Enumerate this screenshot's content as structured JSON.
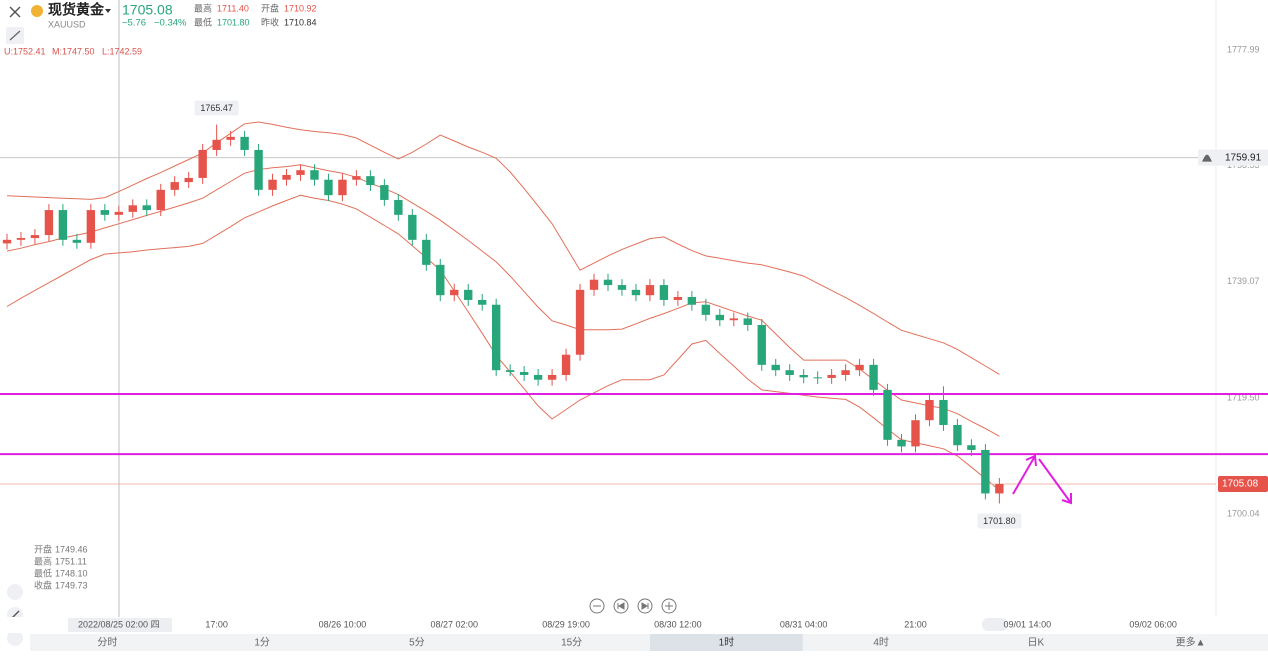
{
  "header": {
    "name": "现货黄金",
    "symbol": "XAUUSD",
    "price": "1705.08",
    "change": "−5.76",
    "change_pct": "−0.34%",
    "stats": [
      {
        "label": "最高",
        "value": "1711.40"
      },
      {
        "label": "开盘",
        "value": "1710.92"
      },
      {
        "label": "最低",
        "value": "1701.80"
      },
      {
        "label": "昨收",
        "value": "1710.84"
      }
    ]
  },
  "indicator": [
    "U:1752.41",
    "M:1747.50",
    "L:1742.59"
  ],
  "info_box": [
    {
      "label": "开盘",
      "value": "1749.46"
    },
    {
      "label": "最高",
      "value": "1751.11"
    },
    {
      "label": "最低",
      "value": "1748.10"
    },
    {
      "label": "收盘",
      "value": "1749.73"
    }
  ],
  "tabs": [
    "分时",
    "1分",
    "5分",
    "15分",
    "1时",
    "4时",
    "日K",
    "更多▲"
  ],
  "active_tab": 4,
  "chart_data": {
    "type": "candlestick",
    "categories": [
      null,
      null,
      null,
      null,
      null,
      null,
      null,
      null,
      "2022/08/25 02:00 四",
      null,
      null,
      null,
      null,
      null,
      null,
      "17:00",
      null,
      null,
      null,
      null,
      null,
      null,
      null,
      null,
      "08/26 10:00",
      null,
      null,
      null,
      null,
      null,
      null,
      null,
      "08/27 02:00",
      null,
      null,
      null,
      null,
      null,
      null,
      null,
      "08/29 19:00",
      null,
      null,
      null,
      null,
      null,
      null,
      null,
      "08/30 12:00",
      null,
      null,
      null,
      null,
      null,
      null,
      null,
      null,
      "08/31 04:00",
      null,
      null,
      null,
      null,
      null,
      null,
      null,
      "21:00",
      null,
      null,
      null,
      null,
      null,
      null,
      null,
      "09/01 14:00",
      null,
      null,
      null,
      null,
      null,
      null,
      null,
      null,
      "09/02 06:00",
      null,
      null,
      null,
      null
    ],
    "open": [
      1745.5,
      1746.1,
      1746.4,
      1746.9,
      1751.1,
      1746.1,
      1745.6,
      1751.1,
      1750.3,
      1750.8,
      1751.9,
      1751.1,
      1754.5,
      1755.8,
      1756.5,
      1761.2,
      1762.9,
      1763.4,
      1761.2,
      1754.5,
      1756.2,
      1757.0,
      1757.8,
      1756.2,
      1753.6,
      1756.2,
      1756.8,
      1755.3,
      1752.8,
      1750.3,
      1746.1,
      1741.9,
      1736.8,
      1737.7,
      1736.0,
      1735.2,
      1724.2,
      1723.9,
      1723.4,
      1722.6,
      1723.4,
      1726.8,
      1737.7,
      1739.4,
      1738.5,
      1737.7,
      1736.8,
      1738.5,
      1736.0,
      1736.5,
      1735.2,
      1733.5,
      1732.6,
      1732.9,
      1731.8,
      1725.1,
      1724.2,
      1723.4,
      1723.0,
      1722.9,
      1723.4,
      1724.2,
      1725.1,
      1720.9,
      1712.5,
      1711.4,
      1715.8,
      1719.2,
      1715.0,
      1711.6,
      1710.8,
      1703.5,
      null,
      null,
      null,
      null,
      null,
      null,
      null,
      null,
      null,
      null,
      null,
      null,
      null,
      null,
      null
    ],
    "high": [
      1747.1,
      1747.4,
      1747.9,
      1752.1,
      1752.1,
      1747.1,
      1752.1,
      1752.1,
      1751.8,
      1752.9,
      1752.9,
      1755.5,
      1756.8,
      1757.5,
      1762.2,
      1765.47,
      1764.4,
      1764.4,
      1762.2,
      1757.2,
      1758.0,
      1758.8,
      1758.8,
      1757.2,
      1757.2,
      1757.8,
      1757.8,
      1756.3,
      1753.8,
      1751.3,
      1747.1,
      1742.9,
      1738.7,
      1738.7,
      1737.0,
      1736.2,
      1725.2,
      1724.9,
      1724.4,
      1724.4,
      1727.8,
      1738.7,
      1740.4,
      1740.4,
      1739.5,
      1738.7,
      1739.5,
      1739.5,
      1737.5,
      1737.5,
      1736.2,
      1734.5,
      1733.9,
      1733.9,
      1732.8,
      1726.1,
      1725.2,
      1724.4,
      1724.0,
      1724.4,
      1725.2,
      1726.1,
      1726.1,
      1721.9,
      1713.5,
      1716.8,
      1720.2,
      1721.5,
      1716.0,
      1712.6,
      1711.8,
      1706.1,
      null,
      null,
      null,
      null,
      null,
      null,
      null,
      null,
      null,
      null,
      null,
      null,
      null,
      null,
      null
    ],
    "low": [
      1744.5,
      1745.1,
      1745.4,
      1745.9,
      1745.1,
      1744.6,
      1744.6,
      1749.3,
      1749.3,
      1749.8,
      1750.1,
      1750.1,
      1753.5,
      1754.8,
      1755.5,
      1760.2,
      1761.9,
      1760.2,
      1753.5,
      1753.5,
      1755.2,
      1756.0,
      1755.2,
      1752.6,
      1752.6,
      1755.2,
      1754.3,
      1751.8,
      1749.3,
      1745.1,
      1740.9,
      1735.8,
      1735.8,
      1735.0,
      1734.2,
      1723.2,
      1723.2,
      1722.4,
      1721.6,
      1721.6,
      1722.4,
      1725.8,
      1736.7,
      1737.5,
      1736.7,
      1735.8,
      1735.8,
      1735.0,
      1735.0,
      1734.2,
      1732.5,
      1731.6,
      1731.6,
      1730.8,
      1724.1,
      1723.2,
      1722.4,
      1722.0,
      1721.9,
      1721.9,
      1722.4,
      1723.2,
      1719.9,
      1711.5,
      1710.4,
      1710.4,
      1714.8,
      1714.0,
      1710.6,
      1709.8,
      1702.5,
      1701.8,
      null,
      null,
      null,
      null,
      null,
      null,
      null,
      null,
      null,
      null,
      null,
      null,
      null,
      null,
      null
    ],
    "close": [
      1746.1,
      1746.4,
      1746.9,
      1751.1,
      1746.1,
      1745.6,
      1751.1,
      1750.3,
      1750.8,
      1751.9,
      1751.1,
      1754.5,
      1755.8,
      1756.5,
      1761.2,
      1762.9,
      1763.4,
      1761.2,
      1754.5,
      1756.2,
      1757.0,
      1757.8,
      1756.2,
      1753.6,
      1756.2,
      1756.8,
      1755.3,
      1752.8,
      1750.3,
      1746.1,
      1741.9,
      1736.8,
      1737.7,
      1736.0,
      1735.2,
      1724.2,
      1723.9,
      1723.4,
      1722.6,
      1723.4,
      1726.8,
      1737.7,
      1739.4,
      1738.5,
      1737.7,
      1736.8,
      1738.5,
      1736.0,
      1736.5,
      1735.2,
      1733.5,
      1732.6,
      1732.9,
      1731.8,
      1725.1,
      1724.2,
      1723.4,
      1723.0,
      1722.9,
      1723.4,
      1724.2,
      1725.1,
      1720.9,
      1712.5,
      1711.4,
      1715.8,
      1719.2,
      1715.0,
      1711.6,
      1710.8,
      1703.5,
      1705.08,
      null,
      null,
      null,
      null,
      null,
      null,
      null,
      null,
      null,
      null,
      null,
      null,
      null,
      null,
      null
    ],
    "up_color": "#e5534b",
    "down_color": "#27a67a",
    "bands": {
      "color": "#e2705a",
      "upper": [
        1753.5,
        1753.4,
        1753.3,
        1753.2,
        1753.1,
        1753.0,
        1752.9,
        1753.2,
        1754.2,
        1755.3,
        1756.4,
        1757.4,
        1758.5,
        1759.6,
        1760.7,
        1762.4,
        1764.0,
        1765.6,
        1765.9,
        1765.5,
        1765.0,
        1764.6,
        1764.3,
        1764.1,
        1763.8,
        1763.2,
        1762.0,
        1760.8,
        1759.7,
        1760.8,
        1762.2,
        1763.7,
        1762.7,
        1761.7,
        1760.8,
        1759.8,
        1757.5,
        1754.7,
        1751.8,
        1748.8,
        1744.9,
        1741.0,
        1742.2,
        1743.4,
        1744.5,
        1745.4,
        1746.3,
        1746.6,
        1745.4,
        1744.3,
        1743.4,
        1743.0,
        1742.6,
        1742.2,
        1741.9,
        1741.3,
        1740.7,
        1740.0,
        1738.8,
        1737.6,
        1736.4,
        1735.1,
        1733.7,
        1732.3,
        1730.9,
        1730.2,
        1729.5,
        1728.8,
        1727.7,
        1726.3,
        1724.9,
        1723.5,
        null,
        null,
        null,
        null,
        null,
        null,
        null,
        null,
        null,
        null,
        null,
        null,
        null,
        null,
        null
      ],
      "middle": [
        1744.2,
        1744.7,
        1745.3,
        1745.8,
        1746.4,
        1746.9,
        1747.4,
        1748.1,
        1748.8,
        1749.5,
        1750.2,
        1750.9,
        1751.6,
        1752.3,
        1753.1,
        1754.5,
        1755.9,
        1757.3,
        1757.9,
        1758.2,
        1758.4,
        1758.7,
        1758.2,
        1757.7,
        1757.3,
        1756.6,
        1755.6,
        1754.7,
        1753.7,
        1752.3,
        1750.9,
        1749.4,
        1747.7,
        1746.0,
        1744.2,
        1742.4,
        1740.0,
        1737.4,
        1734.8,
        1732.5,
        1731.8,
        1731.0,
        1731.0,
        1731.0,
        1731.1,
        1732.0,
        1732.9,
        1733.7,
        1734.6,
        1735.5,
        1735.7,
        1734.9,
        1734.1,
        1733.3,
        1732.6,
        1730.3,
        1728.0,
        1725.9,
        1725.9,
        1725.9,
        1725.9,
        1724.4,
        1722.6,
        1720.8,
        1719.2,
        1718.7,
        1718.2,
        1717.8,
        1716.9,
        1715.6,
        1714.4,
        1713.1,
        null,
        null,
        null,
        null,
        null,
        null,
        null,
        null,
        null,
        null,
        null,
        null,
        null,
        null,
        null
      ],
      "lower": [
        1734.9,
        1736.3,
        1737.6,
        1738.9,
        1740.2,
        1741.5,
        1742.8,
        1743.7,
        1743.9,
        1744.1,
        1744.4,
        1744.6,
        1744.8,
        1745.0,
        1745.5,
        1746.9,
        1748.3,
        1749.8,
        1750.8,
        1751.8,
        1752.7,
        1753.6,
        1753.1,
        1752.7,
        1752.1,
        1751.3,
        1749.9,
        1748.5,
        1747.1,
        1745.1,
        1743.1,
        1741.0,
        1737.5,
        1734.0,
        1730.4,
        1726.7,
        1723.9,
        1721.1,
        1718.2,
        1716.0,
        1717.6,
        1719.2,
        1720.4,
        1721.6,
        1722.6,
        1722.6,
        1722.6,
        1723.4,
        1726.0,
        1728.6,
        1729.2,
        1727.0,
        1724.9,
        1722.7,
        1720.9,
        1720.6,
        1720.3,
        1720.0,
        1719.7,
        1719.5,
        1719.3,
        1718.0,
        1716.2,
        1714.3,
        1712.5,
        1712.0,
        1711.5,
        1711.0,
        1709.8,
        1707.9,
        1706.0,
        1704.0,
        null,
        null,
        null,
        null,
        null,
        null,
        null,
        null,
        null,
        null,
        null,
        null,
        null,
        null,
        null
      ]
    },
    "annotations": [
      "1765.47",
      "1701.80"
    ],
    "last_price": 1705.08,
    "alert_line": 1759.91,
    "hlines": {
      "color": "#e020e0",
      "values": [
        1720.2,
        1710.1
      ]
    },
    "ylim": [
      1682.74,
      1786.39
    ],
    "yticks": [
      1777.99,
      1758.53,
      1739.07,
      {
        "value": 1719.5,
        "label": "1719.50"
      },
      1700.04
    ],
    "grid": false
  }
}
